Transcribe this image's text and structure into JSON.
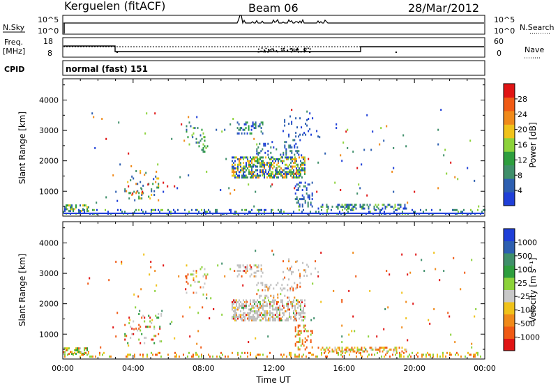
{
  "header": {
    "station": "Kerguelen (fitACF)",
    "beam": "Beam 06",
    "date": "28/Mar/2012"
  },
  "top_panels": {
    "nsky_label": "N.Sky",
    "nsearch_label": "N.Search",
    "nsky_ticks": [
      "10^5",
      "10^0"
    ],
    "nsearch_ticks": [
      "10^5",
      "10^0"
    ],
    "freq_label_line1": "Freq.",
    "freq_label_line2": "[MHz]",
    "freq_ticks": [
      "18",
      "8"
    ],
    "nave_label": "Nave",
    "nave_ticks": [
      "60",
      "0"
    ],
    "cpid_label": "CPID",
    "cpid_value": "normal (fast) 151"
  },
  "colors": {
    "power_scale": [
      "#1f3fd8",
      "#2d5fb0",
      "#3f8f6a",
      "#2e9e3e",
      "#8cd23a",
      "#f0c21a",
      "#f08a1a",
      "#f05a14",
      "#e01414"
    ],
    "velocity_scale": [
      "#1f3fd8",
      "#2d5fb0",
      "#3f8f6a",
      "#2e9e3e",
      "#8cd23a",
      "#c8c8c8",
      "#f0c21a",
      "#f08a1a",
      "#f05a14",
      "#e01414"
    ],
    "ground_scatter": "#c0c0c0"
  },
  "chart_data": [
    {
      "type": "heatmap",
      "name": "power",
      "xlabel": "",
      "ylabel": "Slant Range [km]",
      "x_ticks": [
        "00:00",
        "04:00",
        "08:00",
        "12:00",
        "16:00",
        "20:00",
        "00:00"
      ],
      "y_ticks": [
        "1000",
        "2000",
        "3000",
        "4000"
      ],
      "ylim": [
        180,
        4700
      ],
      "xlim_hours": [
        0,
        24
      ],
      "colorbar_label": "Power [dB]",
      "colorbar_ticks": [
        "4",
        "8",
        "12",
        "16",
        "20",
        "24",
        "28"
      ],
      "colorbar_range": [
        0,
        30
      ]
    },
    {
      "type": "heatmap",
      "name": "velocity",
      "xlabel": "Time UT",
      "ylabel": "Slant Range [km]",
      "x_ticks": [
        "00:00",
        "04:00",
        "08:00",
        "12:00",
        "16:00",
        "20:00",
        "00:00"
      ],
      "y_ticks": [
        "1000",
        "2000",
        "3000",
        "4000"
      ],
      "ylim": [
        180,
        4700
      ],
      "xlim_hours": [
        0,
        24
      ],
      "colorbar_label": "Velocity [m s⁻¹]",
      "colorbar_ticks": [
        "1000",
        "500",
        "100",
        "25",
        "-25",
        "-100",
        "-500",
        "-1000"
      ]
    }
  ]
}
